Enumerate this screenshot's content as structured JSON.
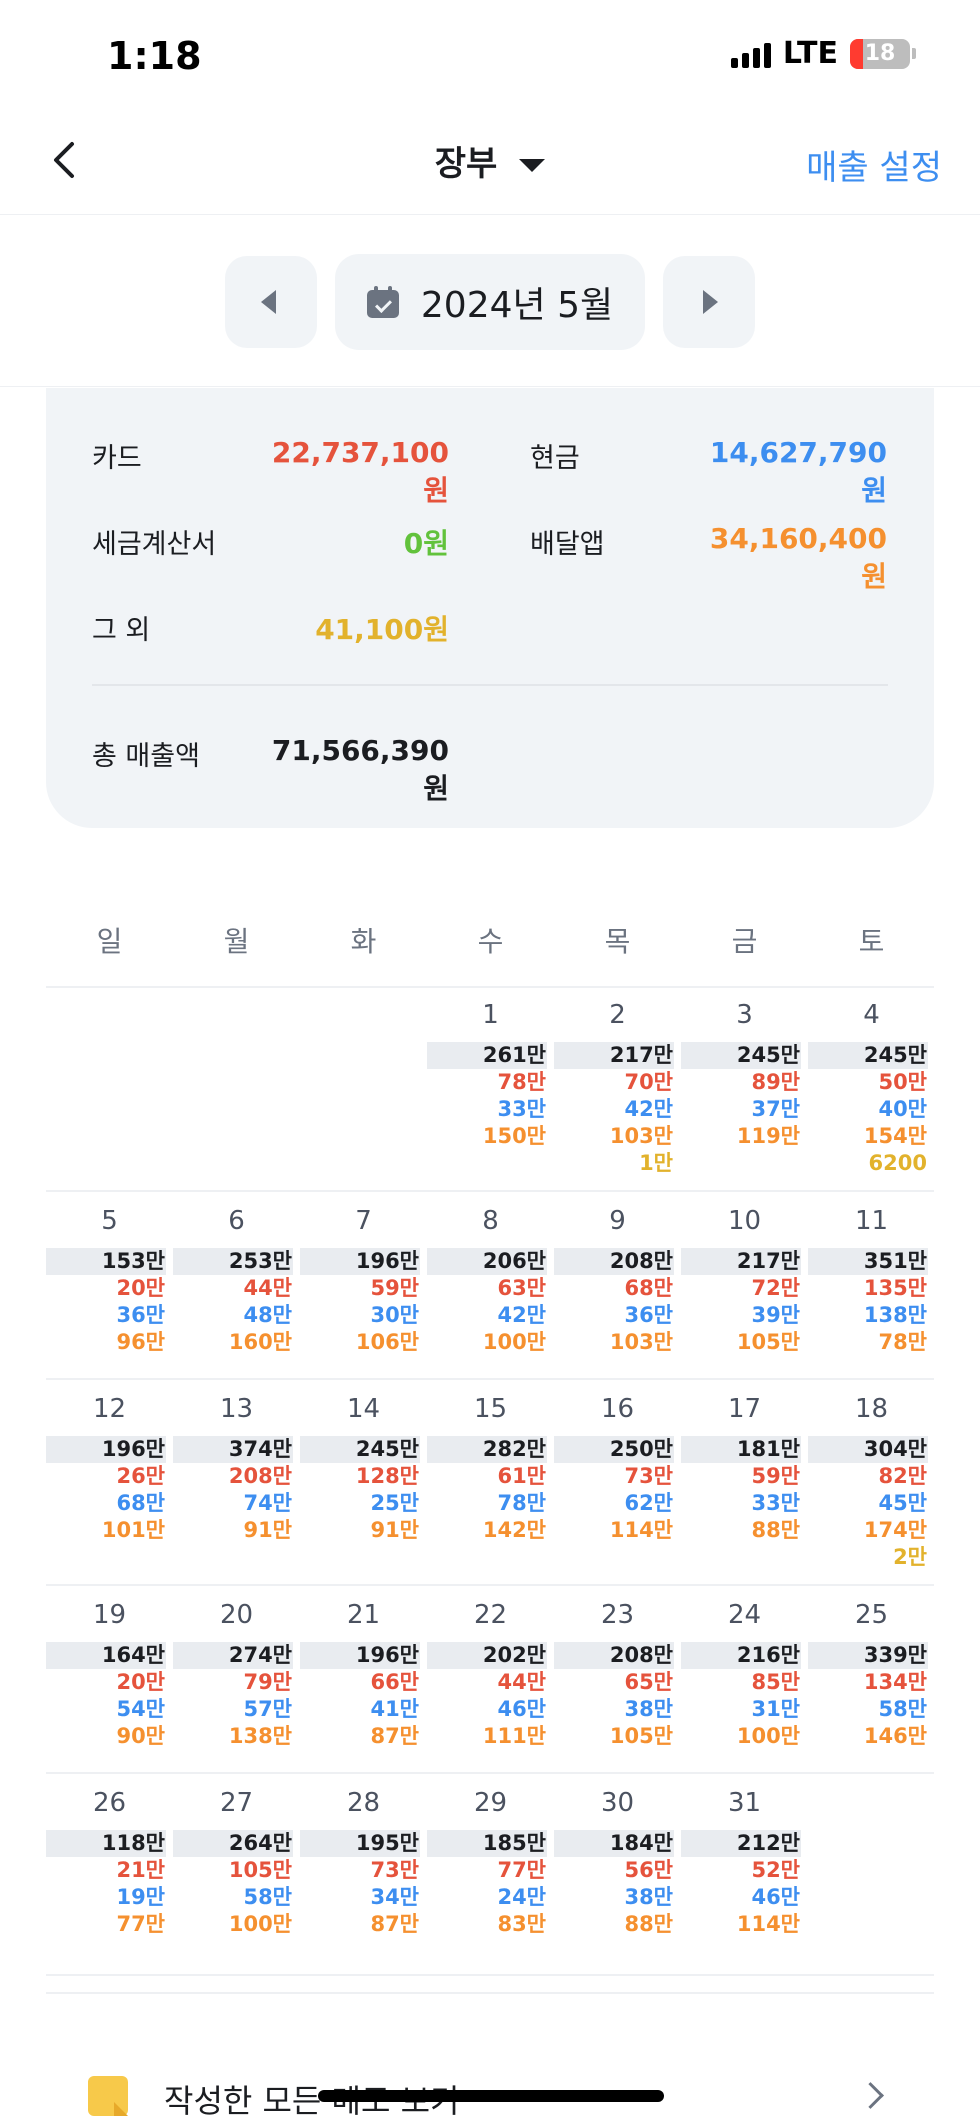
{
  "status": {
    "time": "1:18",
    "network": "LTE",
    "battery": "18"
  },
  "nav": {
    "title": "장부",
    "action": "매출 설정"
  },
  "month": {
    "label": "2024년 5월"
  },
  "summary": {
    "card_label": "카드",
    "card_value": "22,737,100원",
    "cash_label": "현금",
    "cash_value": "14,627,790원",
    "tax_label": "세금계산서",
    "tax_value": "0원",
    "delivery_label": "배달앱",
    "delivery_value": "34,160,400원",
    "etc_label": "그 외",
    "etc_value": "41,100원",
    "total_label": "총 매출액",
    "total_value": "71,566,390원"
  },
  "colors": {
    "card": "#e5533c",
    "cash": "#3d8ef0",
    "tax": "#62c23c",
    "delivery": "#f5902f",
    "etc": "#e2b22c",
    "accent": "#3d8ef0"
  },
  "weekdays": [
    "일",
    "월",
    "화",
    "수",
    "목",
    "금",
    "토"
  ],
  "weeks": [
    [
      null,
      null,
      null,
      {
        "day": "1",
        "total": "261만",
        "card": "78만",
        "cash": "33만",
        "delivery": "150만"
      },
      {
        "day": "2",
        "total": "217만",
        "card": "70만",
        "cash": "42만",
        "delivery": "103만",
        "etc": "1만"
      },
      {
        "day": "3",
        "total": "245만",
        "card": "89만",
        "cash": "37만",
        "delivery": "119만"
      },
      {
        "day": "4",
        "total": "245만",
        "card": "50만",
        "cash": "40만",
        "delivery": "154만",
        "etc": "6200"
      }
    ],
    [
      {
        "day": "5",
        "total": "153만",
        "card": "20만",
        "cash": "36만",
        "delivery": "96만"
      },
      {
        "day": "6",
        "total": "253만",
        "card": "44만",
        "cash": "48만",
        "delivery": "160만"
      },
      {
        "day": "7",
        "total": "196만",
        "card": "59만",
        "cash": "30만",
        "delivery": "106만"
      },
      {
        "day": "8",
        "total": "206만",
        "card": "63만",
        "cash": "42만",
        "delivery": "100만"
      },
      {
        "day": "9",
        "total": "208만",
        "card": "68만",
        "cash": "36만",
        "delivery": "103만"
      },
      {
        "day": "10",
        "total": "217만",
        "card": "72만",
        "cash": "39만",
        "delivery": "105만"
      },
      {
        "day": "11",
        "total": "351만",
        "card": "135만",
        "cash": "138만",
        "delivery": "78만"
      }
    ],
    [
      {
        "day": "12",
        "total": "196만",
        "card": "26만",
        "cash": "68만",
        "delivery": "101만"
      },
      {
        "day": "13",
        "total": "374만",
        "card": "208만",
        "cash": "74만",
        "delivery": "91만"
      },
      {
        "day": "14",
        "total": "245만",
        "card": "128만",
        "cash": "25만",
        "delivery": "91만"
      },
      {
        "day": "15",
        "total": "282만",
        "card": "61만",
        "cash": "78만",
        "delivery": "142만"
      },
      {
        "day": "16",
        "total": "250만",
        "card": "73만",
        "cash": "62만",
        "delivery": "114만"
      },
      {
        "day": "17",
        "total": "181만",
        "card": "59만",
        "cash": "33만",
        "delivery": "88만"
      },
      {
        "day": "18",
        "total": "304만",
        "card": "82만",
        "cash": "45만",
        "delivery": "174만",
        "etc": "2만"
      }
    ],
    [
      {
        "day": "19",
        "total": "164만",
        "card": "20만",
        "cash": "54만",
        "delivery": "90만"
      },
      {
        "day": "20",
        "total": "274만",
        "card": "79만",
        "cash": "57만",
        "delivery": "138만"
      },
      {
        "day": "21",
        "total": "196만",
        "card": "66만",
        "cash": "41만",
        "delivery": "87만"
      },
      {
        "day": "22",
        "total": "202만",
        "card": "44만",
        "cash": "46만",
        "delivery": "111만"
      },
      {
        "day": "23",
        "total": "208만",
        "card": "65만",
        "cash": "38만",
        "delivery": "105만"
      },
      {
        "day": "24",
        "total": "216만",
        "card": "85만",
        "cash": "31만",
        "delivery": "100만"
      },
      {
        "day": "25",
        "total": "339만",
        "card": "134만",
        "cash": "58만",
        "delivery": "146만"
      }
    ],
    [
      {
        "day": "26",
        "total": "118만",
        "card": "21만",
        "cash": "19만",
        "delivery": "77만"
      },
      {
        "day": "27",
        "total": "264만",
        "card": "105만",
        "cash": "58만",
        "delivery": "100만"
      },
      {
        "day": "28",
        "total": "195만",
        "card": "73만",
        "cash": "34만",
        "delivery": "87만"
      },
      {
        "day": "29",
        "total": "185만",
        "card": "77만",
        "cash": "24만",
        "delivery": "83만"
      },
      {
        "day": "30",
        "total": "184만",
        "card": "56만",
        "cash": "38만",
        "delivery": "88만"
      },
      {
        "day": "31",
        "total": "212만",
        "card": "52만",
        "cash": "46만",
        "delivery": "114만"
      },
      null
    ]
  ],
  "memo": {
    "label": "작성한 모든 메모 보기"
  }
}
